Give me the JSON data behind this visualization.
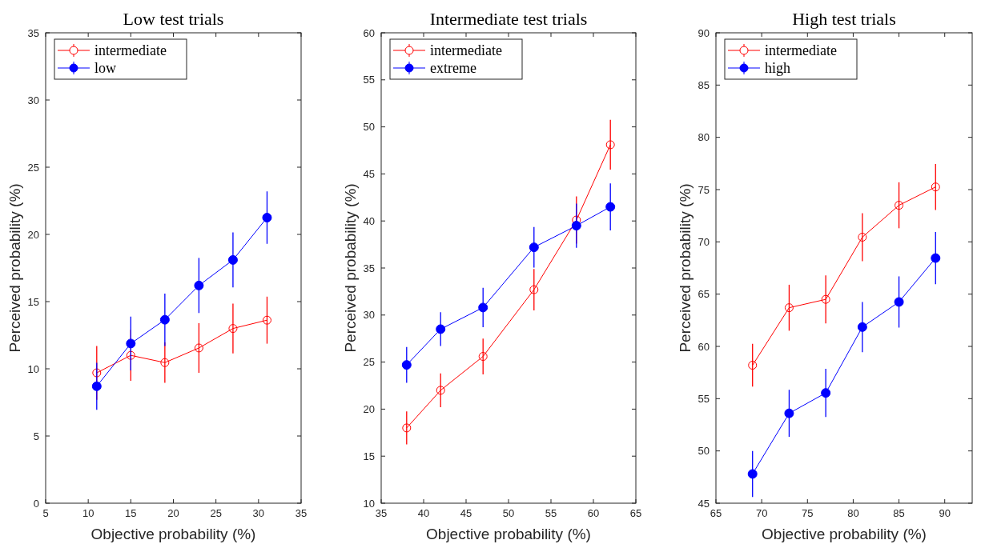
{
  "chart_data": [
    {
      "type": "line",
      "title": "Low test trials",
      "xlabel": "Objective probability (%)",
      "ylabel": "Perceived probability (%)",
      "x": [
        11,
        15,
        19,
        23,
        27,
        31
      ],
      "xlim": [
        5,
        35
      ],
      "xticks": [
        5,
        10,
        15,
        20,
        25,
        30,
        35
      ],
      "ylim": [
        0,
        35
      ],
      "yticks": [
        0,
        5,
        10,
        15,
        20,
        25,
        30,
        35
      ],
      "legend": "top left",
      "marker": "circle",
      "grid": false,
      "series": [
        {
          "name": "intermediate",
          "color": "#ff0000",
          "values": [
            9.7,
            11.0,
            10.46,
            11.55,
            13.0,
            13.62
          ],
          "errors": [
            2.0,
            1.9,
            1.5,
            1.85,
            1.85,
            1.75
          ]
        },
        {
          "name": "low",
          "color": "#0000ff",
          "values": [
            8.7,
            11.88,
            13.65,
            16.2,
            18.1,
            21.25
          ],
          "errors": [
            1.75,
            2.0,
            1.95,
            2.05,
            2.05,
            1.95
          ]
        }
      ]
    },
    {
      "type": "line",
      "title": "Intermediate test trials",
      "xlabel": "Objective probability (%)",
      "ylabel": "Perceived probability (%)",
      "x": [
        38,
        42,
        47,
        53,
        58,
        62
      ],
      "xlim": [
        35,
        65
      ],
      "xticks": [
        35,
        40,
        45,
        50,
        55,
        60,
        65
      ],
      "ylim": [
        10,
        60
      ],
      "yticks": [
        10,
        15,
        20,
        25,
        30,
        35,
        40,
        45,
        50,
        55,
        60
      ],
      "legend": "top left",
      "marker": "circle",
      "grid": false,
      "series": [
        {
          "name": "intermediate",
          "color": "#ff0000",
          "values": [
            18.0,
            22.0,
            25.6,
            32.7,
            40.1,
            48.1
          ],
          "errors": [
            1.75,
            1.8,
            1.9,
            2.2,
            2.5,
            2.65
          ]
        },
        {
          "name": "extreme",
          "color": "#0000ff",
          "values": [
            24.7,
            28.5,
            30.8,
            37.2,
            39.5,
            41.5
          ],
          "errors": [
            1.9,
            1.8,
            2.1,
            2.15,
            2.35,
            2.5
          ]
        }
      ]
    },
    {
      "type": "line",
      "title": "High test trials",
      "xlabel": "Objective probability (%)",
      "ylabel": "Perceived probability (%)",
      "x": [
        69,
        73,
        77,
        81,
        85,
        89
      ],
      "xlim": [
        65,
        93
      ],
      "xticks": [
        65,
        70,
        75,
        80,
        85,
        90
      ],
      "ylim": [
        45,
        90
      ],
      "yticks": [
        45,
        50,
        55,
        60,
        65,
        70,
        75,
        80,
        85,
        90
      ],
      "legend": "top left",
      "marker": "circle",
      "grid": false,
      "series": [
        {
          "name": "intermediate",
          "color": "#ff0000",
          "values": [
            58.2,
            63.7,
            64.5,
            70.45,
            73.5,
            75.25
          ],
          "errors": [
            2.05,
            2.2,
            2.3,
            2.3,
            2.2,
            2.2
          ]
        },
        {
          "name": "high",
          "color": "#0000ff",
          "values": [
            47.8,
            53.6,
            55.55,
            61.85,
            64.25,
            68.45
          ],
          "errors": [
            2.2,
            2.25,
            2.3,
            2.4,
            2.45,
            2.5
          ]
        }
      ]
    }
  ]
}
